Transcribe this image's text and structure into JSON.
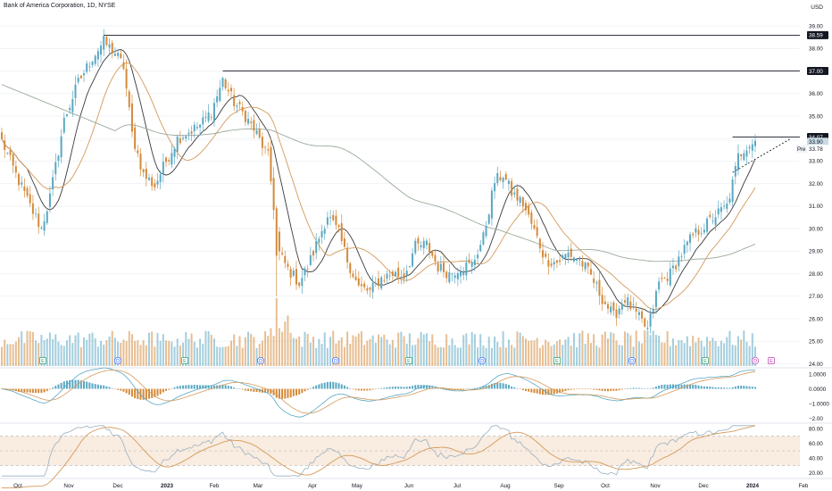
{
  "header": {
    "title": "Bank of America Corporation, 1D, NYSE",
    "currency": "USD"
  },
  "colors": {
    "up": "#5aa7c2",
    "down": "#d48a3a",
    "ma_short": "#3a3a3a",
    "ma_mid": "#d49a5a",
    "ma_long": "#9aaa9a",
    "macd_line": "#5aa7c2",
    "signal_line": "#d49a5a",
    "rsi_line": "#9ab0c0",
    "rsi_ma": "#d49a5a",
    "rsi_band": "#f9ece0"
  },
  "chart_data": [
    {
      "type": "candlestick",
      "name": "price",
      "ylim": [
        23.9,
        39.4
      ],
      "y_ticks": [
        "39.00",
        "38.00",
        "37.00",
        "36.00",
        "35.00",
        "34.00",
        "33.00",
        "32.00",
        "31.00",
        "30.00",
        "29.00",
        "28.00",
        "27.00",
        "26.00",
        "25.00",
        "24.00"
      ],
      "x_ticks": [
        "Oct",
        "Nov",
        "Dec",
        "2023",
        "Feb",
        "Mar",
        "Apr",
        "May",
        "Jun",
        "Jul",
        "Aug",
        "Sep",
        "Oct",
        "Nov",
        "Dec",
        "2024",
        "Feb"
      ],
      "price_labels": [
        {
          "label": "38.59",
          "value": 38.59
        },
        {
          "label": "37.00",
          "value": 37.0
        },
        {
          "label": "34.07",
          "value": 34.07
        },
        {
          "label": "33.90",
          "value": 33.9
        },
        {
          "label": "33.78",
          "value": 33.78
        }
      ],
      "pre_label": "Pre",
      "event_markers": [
        "E",
        "D",
        "E",
        "D",
        "D",
        "E",
        "D",
        "E",
        "D",
        "E",
        "D",
        "E"
      ],
      "close_anchors": [
        {
          "i": 0,
          "v": 33.9
        },
        {
          "i": 5,
          "v": 32.4
        },
        {
          "i": 10,
          "v": 31.0
        },
        {
          "i": 14,
          "v": 30.0
        },
        {
          "i": 17,
          "v": 31.4
        },
        {
          "i": 22,
          "v": 34.8
        },
        {
          "i": 27,
          "v": 36.5
        },
        {
          "i": 32,
          "v": 37.6
        },
        {
          "i": 36,
          "v": 38.3
        },
        {
          "i": 40,
          "v": 37.8
        },
        {
          "i": 43,
          "v": 37.2
        },
        {
          "i": 46,
          "v": 34.2
        },
        {
          "i": 50,
          "v": 32.4
        },
        {
          "i": 54,
          "v": 31.9
        },
        {
          "i": 58,
          "v": 33.0
        },
        {
          "i": 62,
          "v": 34.0
        },
        {
          "i": 66,
          "v": 34.3
        },
        {
          "i": 70,
          "v": 34.6
        },
        {
          "i": 74,
          "v": 35.2
        },
        {
          "i": 78,
          "v": 36.6
        },
        {
          "i": 82,
          "v": 35.6
        },
        {
          "i": 86,
          "v": 35.0
        },
        {
          "i": 90,
          "v": 34.2
        },
        {
          "i": 94,
          "v": 33.2
        },
        {
          "i": 96,
          "v": 31.0
        },
        {
          "i": 98,
          "v": 28.9
        },
        {
          "i": 101,
          "v": 28.2
        },
        {
          "i": 105,
          "v": 27.6
        },
        {
          "i": 108,
          "v": 28.3
        },
        {
          "i": 112,
          "v": 29.6
        },
        {
          "i": 115,
          "v": 30.6
        },
        {
          "i": 119,
          "v": 29.8
        },
        {
          "i": 122,
          "v": 28.6
        },
        {
          "i": 126,
          "v": 27.4
        },
        {
          "i": 130,
          "v": 27.2
        },
        {
          "i": 134,
          "v": 27.8
        },
        {
          "i": 138,
          "v": 28.0
        },
        {
          "i": 142,
          "v": 27.9
        },
        {
          "i": 146,
          "v": 29.2
        },
        {
          "i": 150,
          "v": 29.3
        },
        {
          "i": 154,
          "v": 28.3
        },
        {
          "i": 158,
          "v": 28.0
        },
        {
          "i": 162,
          "v": 28.3
        },
        {
          "i": 166,
          "v": 28.4
        },
        {
          "i": 170,
          "v": 29.6
        },
        {
          "i": 174,
          "v": 32.1
        },
        {
          "i": 177,
          "v": 32.4
        },
        {
          "i": 180,
          "v": 31.6
        },
        {
          "i": 184,
          "v": 31.1
        },
        {
          "i": 188,
          "v": 29.9
        },
        {
          "i": 192,
          "v": 28.6
        },
        {
          "i": 196,
          "v": 28.5
        },
        {
          "i": 200,
          "v": 28.9
        },
        {
          "i": 204,
          "v": 28.6
        },
        {
          "i": 208,
          "v": 27.9
        },
        {
          "i": 212,
          "v": 26.9
        },
        {
          "i": 216,
          "v": 26.1
        },
        {
          "i": 220,
          "v": 26.9
        },
        {
          "i": 224,
          "v": 26.2
        },
        {
          "i": 228,
          "v": 25.5
        },
        {
          "i": 232,
          "v": 27.6
        },
        {
          "i": 236,
          "v": 28.0
        },
        {
          "i": 240,
          "v": 28.9
        },
        {
          "i": 244,
          "v": 29.7
        },
        {
          "i": 248,
          "v": 30.1
        },
        {
          "i": 252,
          "v": 30.6
        },
        {
          "i": 256,
          "v": 31.0
        },
        {
          "i": 258,
          "v": 32.0
        },
        {
          "i": 260,
          "v": 33.2
        },
        {
          "i": 263,
          "v": 33.7
        },
        {
          "i": 266,
          "v": 33.9
        }
      ],
      "moving_averages": [
        {
          "period": 10
        },
        {
          "period": 20
        },
        {
          "period": 100
        }
      ]
    },
    {
      "type": "bar",
      "name": "volume",
      "ylim": [
        0,
        100
      ]
    },
    {
      "type": "line",
      "name": "macd",
      "ylim": [
        -2.2,
        1.3
      ],
      "y_ticks": [
        "1.0000",
        "0.0000",
        "−1.0000",
        "−2.00"
      ],
      "series": [
        {
          "kind": "macd"
        },
        {
          "kind": "signal"
        },
        {
          "kind": "histogram"
        }
      ]
    },
    {
      "type": "line",
      "name": "rsi",
      "ylim": [
        15,
        85
      ],
      "y_ticks": [
        "80.00",
        "60.00",
        "40.00",
        "20.00"
      ],
      "band": [
        30,
        70
      ]
    }
  ]
}
